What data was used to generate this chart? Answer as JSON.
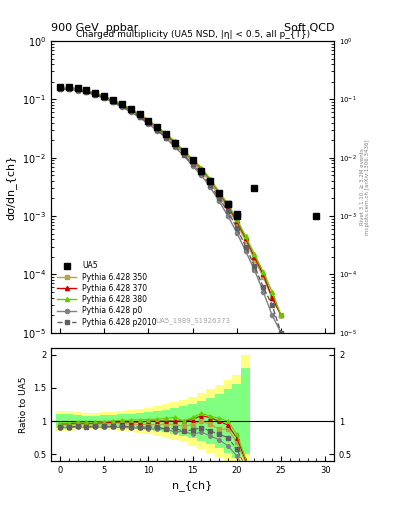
{
  "title_left": "900 GeV  ppbar",
  "title_right": "Soft QCD",
  "right_label": "Rivet 3.1.10, ≥ 3.2M events",
  "right_label2": "mcplots.cern.ch [arXiv:1306.3436]",
  "plot_title": "Charged multiplicity (UA5 NSD, |η| < 0.5, all p_{T})",
  "watermark": "UA5_1989_S1926373",
  "xlabel": "n_{ch}",
  "ylabel_top": "dσ/dn_{ch}",
  "ylabel_bottom": "Ratio to UA5",
  "nch": [
    0,
    1,
    2,
    3,
    4,
    5,
    6,
    7,
    8,
    9,
    10,
    11,
    12,
    13,
    14,
    15,
    16,
    17,
    18,
    19,
    20,
    21,
    22,
    23,
    24,
    25,
    26,
    27,
    28,
    29,
    30
  ],
  "ua5_data": [
    0.165,
    0.165,
    0.155,
    0.145,
    0.13,
    0.115,
    0.098,
    0.082,
    0.068,
    0.055,
    0.043,
    0.033,
    0.025,
    0.018,
    0.013,
    0.009,
    0.006,
    0.004,
    0.0025,
    0.0016,
    0.0011,
    null,
    null,
    null,
    null,
    null,
    null,
    null,
    null,
    null,
    null
  ],
  "ua5_scatter": [
    null,
    null,
    null,
    null,
    null,
    null,
    null,
    null,
    null,
    null,
    null,
    null,
    null,
    null,
    null,
    null,
    null,
    null,
    null,
    0.0016,
    0.001,
    null,
    0.003,
    null,
    null,
    null,
    null,
    null,
    null,
    0.001,
    null
  ],
  "p350_y": [
    0.155,
    0.155,
    0.148,
    0.138,
    0.124,
    0.11,
    0.094,
    0.079,
    0.065,
    0.052,
    0.041,
    0.031,
    0.024,
    0.017,
    0.012,
    0.0085,
    0.006,
    0.0038,
    0.0022,
    0.0014,
    0.00075,
    0.00038,
    0.00018,
    9e-05,
    4e-05,
    2e-05,
    null,
    null,
    null,
    null,
    null
  ],
  "p370_y": [
    0.158,
    0.158,
    0.151,
    0.14,
    0.126,
    0.112,
    0.096,
    0.081,
    0.067,
    0.054,
    0.043,
    0.033,
    0.025,
    0.018,
    0.013,
    0.0092,
    0.0065,
    0.0042,
    0.0025,
    0.0015,
    0.00082,
    0.00042,
    0.0002,
    0.0001,
    4e-05,
    2e-05,
    null,
    null,
    null,
    null,
    null
  ],
  "p380_y": [
    0.16,
    0.16,
    0.153,
    0.142,
    0.128,
    0.114,
    0.098,
    0.083,
    0.069,
    0.056,
    0.044,
    0.034,
    0.026,
    0.019,
    0.013,
    0.0095,
    0.0067,
    0.0043,
    0.0026,
    0.0016,
    0.00088,
    0.00045,
    0.00022,
    0.00011,
    5e-05,
    2e-05,
    null,
    null,
    null,
    null,
    null
  ],
  "pp0_y": [
    0.148,
    0.148,
    0.141,
    0.131,
    0.118,
    0.104,
    0.089,
    0.074,
    0.061,
    0.049,
    0.038,
    0.029,
    0.022,
    0.015,
    0.011,
    0.0072,
    0.005,
    0.0031,
    0.0018,
    0.001,
    0.00052,
    0.00025,
    0.00012,
    5e-05,
    2e-05,
    1e-05,
    null,
    null,
    null,
    null,
    null
  ],
  "p2010_y": [
    0.15,
    0.15,
    0.143,
    0.133,
    0.12,
    0.106,
    0.09,
    0.076,
    0.062,
    0.05,
    0.039,
    0.03,
    0.022,
    0.016,
    0.011,
    0.0078,
    0.0054,
    0.0034,
    0.002,
    0.0012,
    0.00063,
    0.0003,
    0.00014,
    6e-05,
    3e-05,
    1e-05,
    null,
    null,
    null,
    null,
    null
  ],
  "yellow_band_x": [
    -0.5,
    0.5,
    1.5,
    2.5,
    3.5,
    4.5,
    5.5,
    6.5,
    7.5,
    8.5,
    9.5,
    10.5,
    11.5,
    12.5,
    13.5,
    14.5,
    15.5,
    16.5,
    17.5,
    18.5,
    19.5,
    20.5,
    21.5,
    22.5,
    23.5,
    24.5,
    25.5,
    26.5,
    27.5,
    28.5,
    29.5
  ],
  "yellow_lo": [
    0.85,
    0.85,
    0.87,
    0.88,
    0.88,
    0.87,
    0.86,
    0.85,
    0.84,
    0.82,
    0.8,
    0.78,
    0.75,
    0.72,
    0.68,
    0.63,
    0.58,
    0.52,
    0.45,
    0.38,
    0.3,
    0.4,
    2.0,
    2.0,
    2.0,
    2.0,
    2.0,
    2.0,
    2.0,
    2.0,
    2.0
  ],
  "yellow_hi": [
    1.15,
    1.15,
    1.13,
    1.12,
    1.12,
    1.13,
    1.14,
    1.15,
    1.16,
    1.18,
    1.2,
    1.22,
    1.25,
    1.28,
    1.32,
    1.37,
    1.42,
    1.48,
    1.55,
    1.62,
    1.7,
    2.0,
    2.0,
    2.0,
    2.0,
    2.0,
    2.0,
    2.0,
    2.0,
    2.0,
    2.0
  ],
  "green_lo": [
    0.9,
    0.9,
    0.91,
    0.92,
    0.92,
    0.91,
    0.91,
    0.9,
    0.89,
    0.88,
    0.86,
    0.85,
    0.83,
    0.81,
    0.78,
    0.74,
    0.7,
    0.65,
    0.59,
    0.52,
    0.44,
    0.5,
    2.0,
    2.0,
    2.0,
    2.0,
    2.0,
    2.0,
    2.0,
    2.0,
    2.0
  ],
  "green_hi": [
    1.1,
    1.1,
    1.09,
    1.08,
    1.08,
    1.09,
    1.09,
    1.1,
    1.11,
    1.12,
    1.14,
    1.15,
    1.17,
    1.19,
    1.22,
    1.26,
    1.3,
    1.35,
    1.41,
    1.48,
    1.56,
    1.8,
    2.0,
    2.0,
    2.0,
    2.0,
    2.0,
    2.0,
    2.0,
    2.0,
    2.0
  ],
  "color_350": "#b5a642",
  "color_370": "#cc0000",
  "color_380": "#66cc00",
  "color_p0": "#808080",
  "color_p2010": "#606060",
  "color_yellow": "#ffff80",
  "color_green": "#80ff80",
  "background_color": "#ffffff"
}
